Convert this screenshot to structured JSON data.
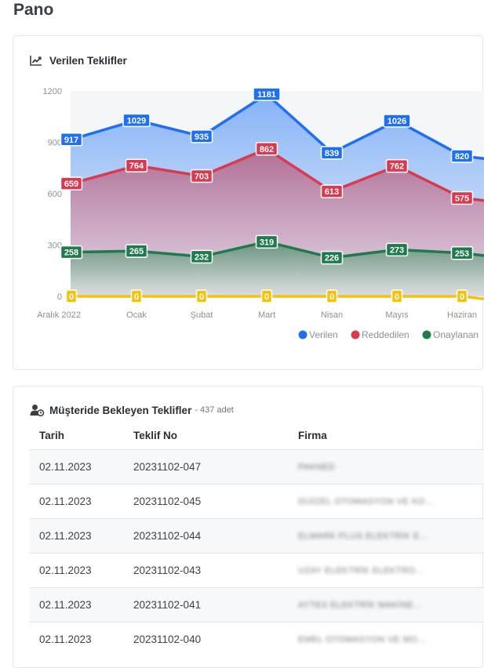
{
  "page": {
    "title": "Pano"
  },
  "chart_card": {
    "title": "Verilen Teklifler",
    "icon": "line-chart-icon"
  },
  "chart_data": {
    "type": "area",
    "title": "Verilen Teklifler",
    "categories": [
      "Aralık 2022",
      "Ocak",
      "Şubat",
      "Mart",
      "Nisan",
      "Mayıs",
      "Haziran"
    ],
    "y_ticks": [
      "0",
      "300",
      "600",
      "900",
      "1200"
    ],
    "ylim": [
      0,
      1200
    ],
    "grid": false,
    "legend_position": "bottom-right",
    "legend_labels": [
      "Verilen",
      "Reddedilen",
      "Onaylanan"
    ],
    "series": [
      {
        "name": "Verilen",
        "color": "#1f6ff2",
        "values": [
          917,
          1029,
          935,
          1181,
          839,
          1026,
          820
        ]
      },
      {
        "name": "Reddedilen",
        "color": "#d83a4f",
        "values": [
          659,
          764,
          703,
          862,
          613,
          762,
          575
        ]
      },
      {
        "name": "Onaylanan",
        "color": "#1f7a4c",
        "values": [
          258,
          265,
          232,
          319,
          226,
          273,
          253
        ]
      },
      {
        "name": "",
        "color": "#f4c20d",
        "values": [
          0,
          0,
          0,
          0,
          0,
          0,
          0
        ]
      }
    ]
  },
  "table_card": {
    "title": "Müşteride Bekleyen Teklifler",
    "count": "- 437 adet",
    "icon": "user-clock-icon",
    "columns": [
      "Tarih",
      "Teklif No",
      "Firma"
    ],
    "rows": [
      {
        "date": "02.11.2023",
        "no": "20231102-047",
        "firm": "PAKNED"
      },
      {
        "date": "02.11.2023",
        "no": "20231102-045",
        "firm": "DİJİZEL OTOMASYON VE KO..."
      },
      {
        "date": "02.11.2023",
        "no": "20231102-044",
        "firm": "ELMARK PLUS ELEKTRİK E..."
      },
      {
        "date": "02.11.2023",
        "no": "20231102-043",
        "firm": "UZAY ELEKTRİK ELEKTRO..."
      },
      {
        "date": "02.11.2023",
        "no": "20231102-041",
        "firm": "AYTES ELEKTRİK MAKİNE..."
      },
      {
        "date": "02.11.2023",
        "no": "20231102-040",
        "firm": "EMEL OTOMASYON VE MO..."
      }
    ]
  }
}
